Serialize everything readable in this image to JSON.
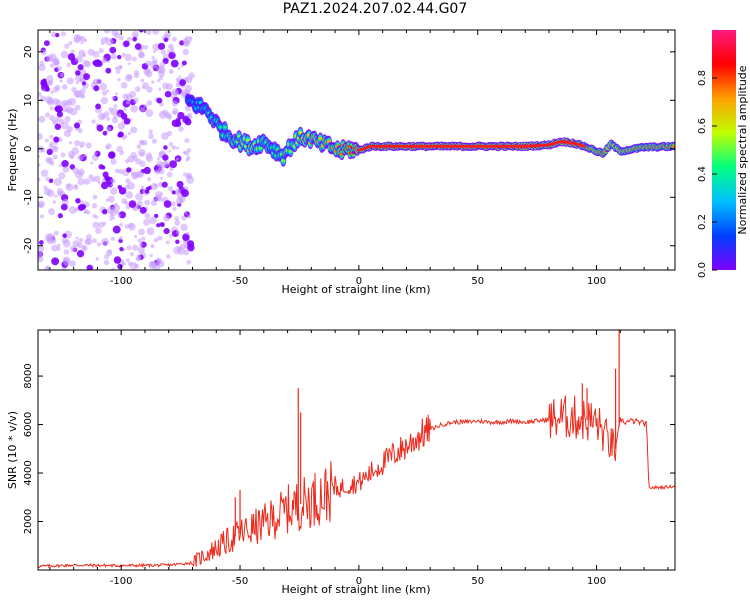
{
  "title": "PAZ1.2024.207.02.44.G07",
  "colors": {
    "scatter_purple": "#7f00ff",
    "scatter_light": "#c89cff",
    "snr_line": "#ee2a1c",
    "colorbar_stops": [
      "#7f00ff",
      "#0040ff",
      "#00c0ff",
      "#00ff80",
      "#c0ff00",
      "#ffa000",
      "#ff0000",
      "#ff1a80"
    ]
  },
  "chart_data": [
    {
      "type": "heatmap",
      "xlabel": "Height of straight line (km)",
      "ylabel": "Frequency (Hz)",
      "xlim": [
        -135,
        133
      ],
      "ylim": [
        -25,
        24.5
      ],
      "xticks": [
        -100,
        -50,
        0,
        50,
        100
      ],
      "yticks": [
        -20,
        -10,
        0,
        10,
        20
      ],
      "x_tick_labels": [
        "-100",
        "-50",
        "0",
        "50",
        "100"
      ],
      "y_tick_labels": [
        "-20",
        "-10",
        "0",
        "10",
        "20"
      ],
      "ridge": {
        "x": [
          -72,
          -68,
          -64,
          -61,
          -58,
          -54,
          -50,
          -45,
          -40,
          -36,
          -32,
          -28,
          -24,
          -20,
          -16,
          -12,
          -8,
          -4,
          0,
          5,
          15,
          30,
          50,
          70,
          80,
          85,
          90,
          95,
          100,
          103,
          106,
          110,
          120,
          133
        ],
        "freq": [
          10,
          9,
          8,
          6,
          4,
          2.5,
          1.5,
          0.5,
          1.5,
          0,
          -1.5,
          1,
          2.5,
          2,
          1,
          0.5,
          -0.5,
          0,
          -0.3,
          0.5,
          0.5,
          0.5,
          0.5,
          0.5,
          0.8,
          1.5,
          1.2,
          0.5,
          -0.5,
          -1,
          1,
          -0.5,
          0.3,
          0.5
        ],
        "amplitude": [
          0.25,
          0.3,
          0.35,
          0.4,
          0.4,
          0.45,
          0.5,
          0.55,
          0.45,
          0.4,
          0.5,
          0.5,
          0.6,
          0.65,
          0.65,
          0.7,
          0.75,
          0.8,
          0.9,
          0.85,
          0.9,
          0.9,
          0.9,
          0.9,
          0.85,
          0.95,
          0.9,
          0.75,
          0.7,
          0.8,
          0.6,
          0.7,
          0.75,
          0.75
        ]
      },
      "noise_region": {
        "x_range": [
          -135,
          -70
        ],
        "freq_range": [
          -25,
          24.5
        ],
        "amplitude": [
          0.05,
          0.25
        ]
      },
      "colorbar": {
        "label": "Normalized spectral amplitude",
        "range": [
          0,
          1
        ],
        "ticks": [
          0.0,
          0.2,
          0.4,
          0.6,
          0.8
        ],
        "tick_labels": [
          "0.0",
          "0.2",
          "0.4",
          "0.6",
          "0.8"
        ]
      }
    },
    {
      "type": "line",
      "xlabel": "Height of straight line (km)",
      "ylabel": "SNR (10 * v/v)",
      "xlim": [
        -135,
        133
      ],
      "ylim": [
        0,
        9900
      ],
      "xticks": [
        -100,
        -50,
        0,
        50,
        100
      ],
      "yticks": [
        2000,
        4000,
        6000,
        8000
      ],
      "x_tick_labels": [
        "-100",
        "-50",
        "0",
        "50",
        "100"
      ],
      "y_tick_labels": [
        "2000",
        "4000",
        "6000",
        "8000"
      ],
      "series": [
        {
          "x": [
            -135,
            -120,
            -100,
            -80,
            -75,
            -70,
            -65,
            -60,
            -55,
            -50,
            -45,
            -40,
            -35,
            -30,
            -25,
            -20,
            -15,
            -10,
            -5,
            0,
            5,
            10,
            15,
            20,
            25,
            30,
            35,
            40,
            45,
            50,
            55,
            60,
            65,
            70,
            75,
            80,
            85,
            90,
            95,
            100,
            105,
            108,
            110,
            112,
            115,
            118,
            121,
            122,
            125,
            133
          ],
          "y": [
            150,
            200,
            180,
            200,
            250,
            300,
            600,
            900,
            1200,
            1500,
            1700,
            1900,
            2200,
            2500,
            2700,
            2900,
            3100,
            3300,
            3500,
            3600,
            4000,
            4400,
            4800,
            5100,
            5500,
            5800,
            6000,
            6100,
            6100,
            6150,
            6100,
            6100,
            6150,
            6100,
            6150,
            6200,
            6300,
            6300,
            6200,
            6100,
            5300,
            5000,
            6200,
            6100,
            6150,
            6100,
            6000,
            3400,
            3400,
            3450
          ],
          "spikes": [
            {
              "x": -25.5,
              "y": 7500
            },
            {
              "x": -24.5,
              "y": 6500
            },
            {
              "x": -50,
              "y": 3300
            },
            {
              "x": -52,
              "y": 3000
            },
            {
              "x": 108,
              "y": 8300
            },
            {
              "x": 109.5,
              "y": 9900
            },
            {
              "x": 94,
              "y": 7700
            },
            {
              "x": 96,
              "y": 7500
            }
          ]
        }
      ]
    }
  ]
}
